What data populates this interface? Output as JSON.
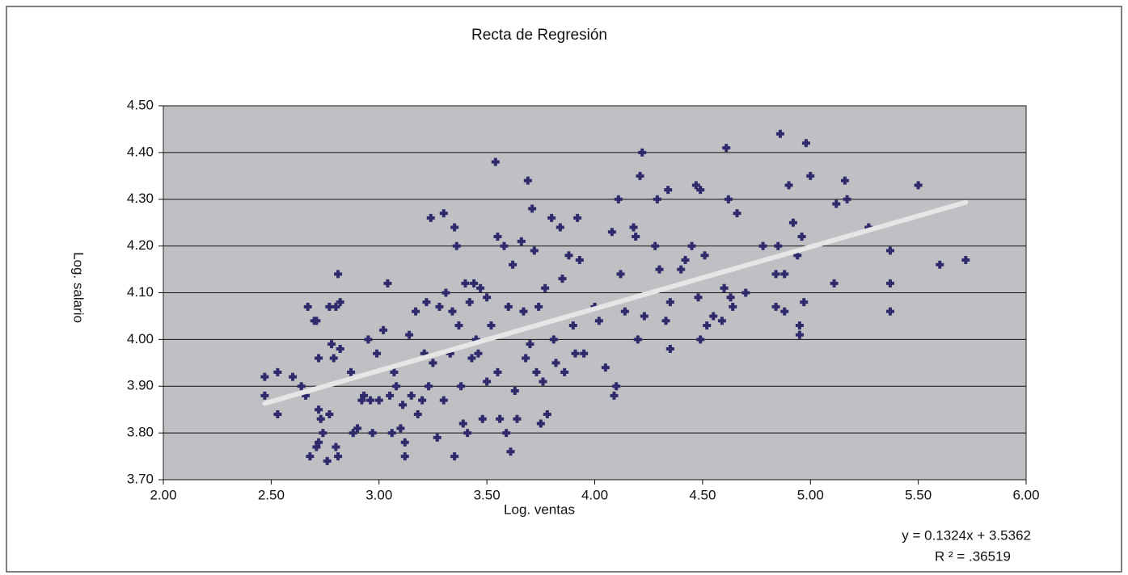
{
  "chart_data": {
    "type": "scatter",
    "title": "Recta de Regresión",
    "x_label": "Log. ventas",
    "y_label": "Log. salario",
    "color": "#2e2a6b",
    "plot_background": "#c0c0c4",
    "grid": true,
    "xlim": [
      2.0,
      6.0
    ],
    "xticks": [
      {
        "value": 2.0,
        "label": "2.00"
      },
      {
        "value": 2.5,
        "label": "2.50"
      },
      {
        "value": 3.0,
        "label": "3.00"
      },
      {
        "value": 3.5,
        "label": "3.50"
      },
      {
        "value": 4.0,
        "label": "4.00"
      },
      {
        "value": 4.5,
        "label": "4.50"
      },
      {
        "value": 5.0,
        "label": "5.00"
      },
      {
        "value": 5.5,
        "label": "5.50"
      },
      {
        "value": 6.0,
        "label": "6.00"
      }
    ],
    "ylim": [
      3.7,
      4.5
    ],
    "yticks": [
      {
        "value": 3.7,
        "label": "3.70"
      },
      {
        "value": 3.8,
        "label": "3.80"
      },
      {
        "value": 3.9,
        "label": "3.90"
      },
      {
        "value": 4.0,
        "label": "4.00"
      },
      {
        "value": 4.1,
        "label": "4.10"
      },
      {
        "value": 4.2,
        "label": "4.20"
      },
      {
        "value": 4.3,
        "label": "4.30"
      },
      {
        "value": 4.4,
        "label": "4.40"
      },
      {
        "value": 4.5,
        "label": "4.50"
      }
    ],
    "x": [
      2.47,
      2.47,
      2.53,
      2.53,
      2.6,
      2.64,
      2.66,
      2.67,
      2.68,
      2.7,
      2.71,
      2.72,
      2.72,
      2.73,
      2.74,
      2.72,
      2.71,
      2.76,
      2.77,
      2.77,
      2.78,
      2.79,
      2.8,
      2.8,
      2.81,
      2.81,
      2.82,
      2.82,
      2.87,
      2.88,
      2.9,
      2.92,
      2.93,
      2.95,
      2.96,
      2.97,
      2.99,
      3.0,
      3.02,
      3.04,
      3.05,
      3.06,
      3.07,
      3.08,
      3.1,
      3.11,
      3.12,
      3.12,
      3.14,
      3.15,
      3.17,
      3.18,
      3.2,
      3.21,
      3.22,
      3.23,
      3.24,
      3.25,
      3.27,
      3.28,
      3.3,
      3.3,
      3.31,
      3.33,
      3.34,
      3.35,
      3.35,
      3.36,
      3.37,
      3.38,
      3.39,
      3.4,
      3.41,
      3.42,
      3.43,
      3.44,
      3.45,
      3.46,
      3.47,
      3.48,
      3.5,
      3.5,
      3.52,
      3.54,
      3.55,
      3.55,
      3.56,
      3.58,
      3.59,
      3.6,
      3.61,
      3.62,
      3.63,
      3.64,
      3.66,
      3.67,
      3.68,
      3.69,
      3.7,
      3.71,
      3.72,
      3.73,
      3.74,
      3.75,
      3.76,
      3.77,
      3.78,
      3.8,
      3.81,
      3.82,
      3.84,
      3.85,
      3.86,
      3.88,
      3.9,
      3.91,
      3.92,
      3.93,
      3.95,
      4.0,
      4.02,
      4.05,
      4.08,
      4.09,
      4.1,
      4.11,
      4.12,
      4.14,
      4.18,
      4.19,
      4.2,
      4.21,
      4.22,
      4.23,
      4.28,
      4.29,
      4.3,
      4.33,
      4.34,
      4.35,
      4.35,
      4.4,
      4.42,
      4.45,
      4.47,
      4.48,
      4.49,
      4.49,
      4.51,
      4.52,
      4.55,
      4.59,
      4.6,
      4.61,
      4.62,
      4.63,
      4.64,
      4.66,
      4.7,
      4.78,
      4.84,
      4.84,
      4.85,
      4.86,
      4.88,
      4.88,
      4.9,
      4.92,
      4.94,
      4.95,
      4.95,
      4.96,
      4.97,
      4.98,
      5.0,
      5.11,
      5.12,
      5.16,
      5.17,
      5.27,
      5.37,
      5.37,
      5.37,
      5.5,
      5.6,
      5.72
    ],
    "values": [
      3.92,
      3.88,
      3.93,
      3.84,
      3.92,
      3.9,
      3.88,
      4.07,
      3.75,
      4.04,
      4.04,
      3.96,
      3.85,
      3.83,
      3.8,
      3.78,
      3.77,
      3.74,
      3.84,
      4.07,
      3.99,
      3.96,
      3.77,
      4.07,
      4.14,
      3.75,
      4.08,
      3.98,
      3.93,
      3.8,
      3.81,
      3.87,
      3.88,
      4.0,
      3.87,
      3.8,
      3.97,
      3.87,
      4.02,
      4.12,
      3.88,
      3.8,
      3.93,
      3.9,
      3.81,
      3.86,
      3.75,
      3.78,
      4.01,
      3.88,
      4.06,
      3.84,
      3.87,
      3.97,
      4.08,
      3.9,
      4.26,
      3.95,
      3.79,
      4.07,
      4.27,
      3.87,
      4.1,
      3.97,
      4.06,
      3.75,
      4.24,
      4.2,
      4.03,
      3.9,
      3.82,
      4.12,
      3.8,
      4.08,
      3.96,
      4.12,
      4.0,
      3.97,
      4.11,
      3.83,
      3.91,
      4.09,
      4.03,
      4.38,
      4.22,
      3.93,
      3.83,
      4.2,
      3.8,
      4.07,
      3.76,
      4.16,
      3.89,
      3.83,
      4.21,
      4.06,
      3.96,
      4.34,
      3.99,
      4.28,
      4.19,
      3.93,
      4.07,
      3.82,
      3.91,
      4.11,
      3.84,
      4.26,
      4.0,
      3.95,
      4.24,
      4.13,
      3.93,
      4.18,
      4.03,
      3.97,
      4.26,
      4.17,
      3.97,
      4.07,
      4.04,
      3.94,
      4.23,
      3.88,
      3.9,
      4.3,
      4.14,
      4.06,
      4.24,
      4.22,
      4.0,
      4.35,
      4.4,
      4.05,
      4.2,
      4.3,
      4.15,
      4.04,
      4.32,
      3.98,
      4.08,
      4.15,
      4.17,
      4.2,
      4.33,
      4.09,
      4.32,
      4.0,
      4.18,
      4.03,
      4.05,
      4.04,
      4.11,
      4.41,
      4.3,
      4.09,
      4.07,
      4.27,
      4.1,
      4.2,
      4.14,
      4.07,
      4.2,
      4.44,
      4.14,
      4.06,
      4.33,
      4.25,
      4.18,
      4.03,
      4.01,
      4.22,
      4.08,
      4.42,
      4.35,
      4.12,
      4.29,
      4.34,
      4.3,
      4.24,
      4.19,
      4.12,
      4.06,
      4.33,
      4.16,
      4.17
    ],
    "trendline": {
      "x": [
        2.47,
        5.72
      ],
      "values": [
        3.8632,
        4.2935
      ],
      "color": "#e6e6e6",
      "equation": "y = 0.1324x + 3.5362",
      "r_squared": "R ² = .36519"
    }
  }
}
